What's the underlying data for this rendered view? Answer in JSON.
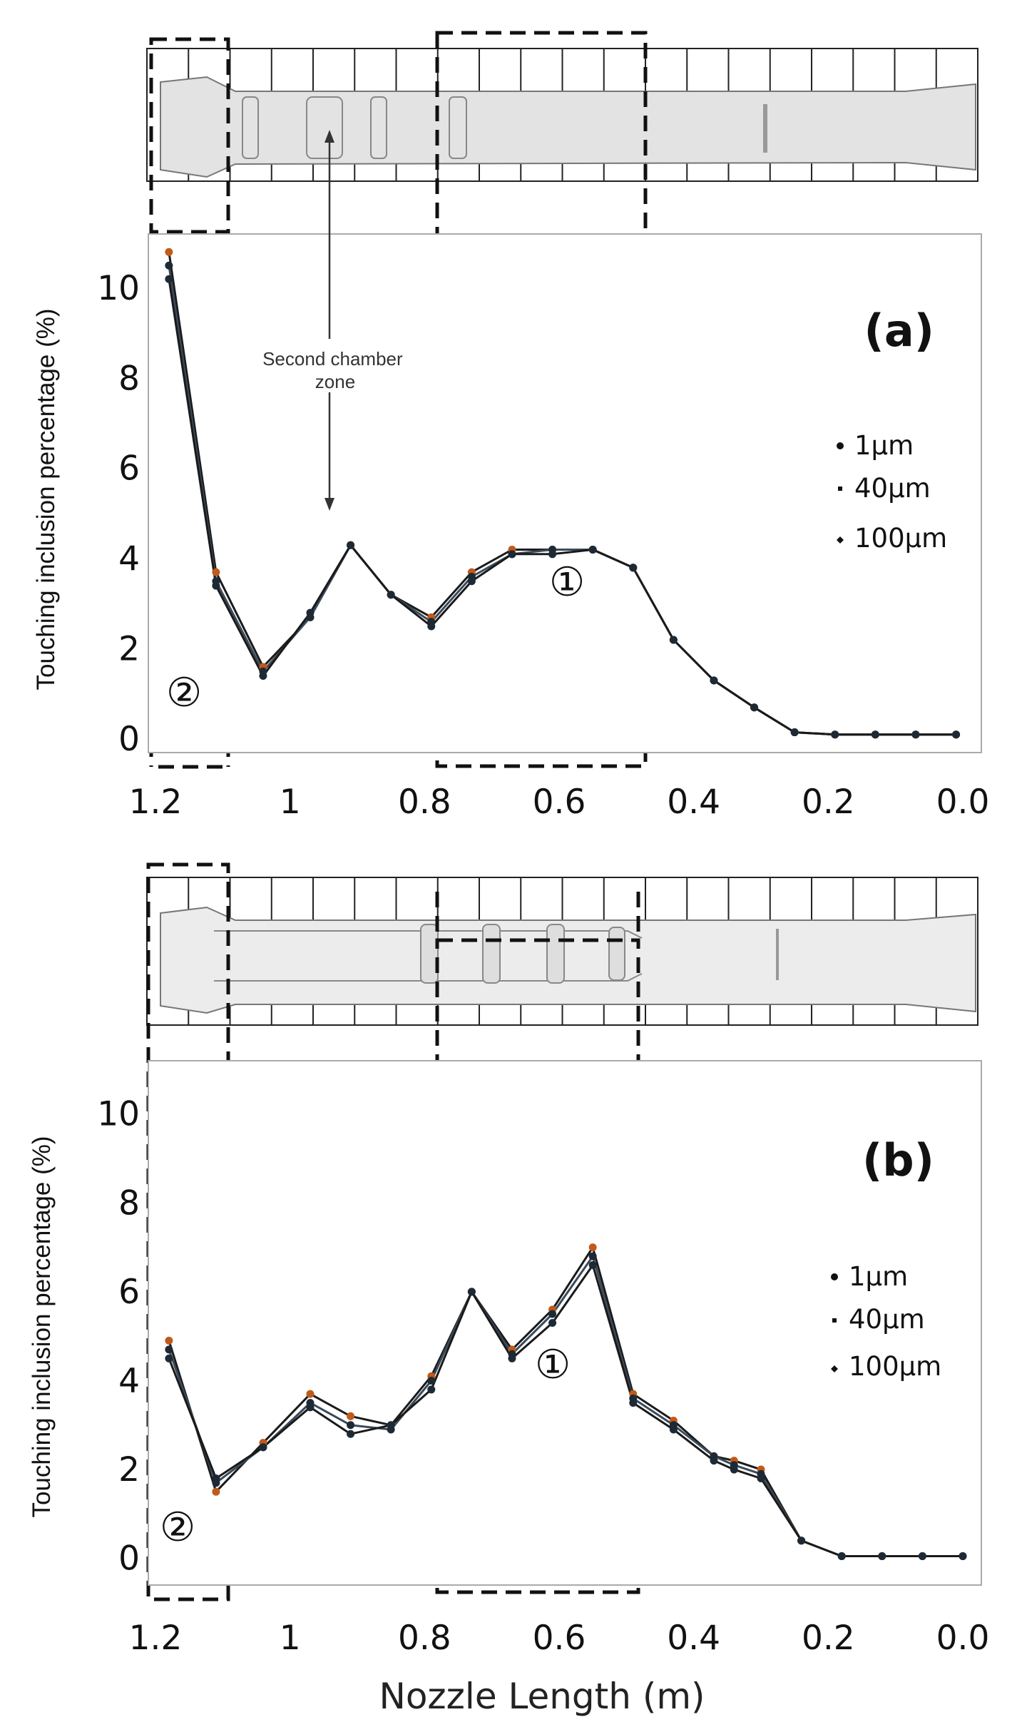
{
  "chart_data": [
    {
      "panel": "(a)",
      "type": "line",
      "ylabel": "Touching inclusion percentage (%)",
      "xlabel": "",
      "x_reversed": true,
      "xlim": [
        1.2,
        0.0
      ],
      "ylim": [
        -0.3,
        11.2
      ],
      "xticks": [
        "1.2",
        "1",
        "0.8",
        "0.6",
        "0.4",
        "0.2",
        "0.0"
      ],
      "yticks": [
        "0",
        "2",
        "4",
        "6",
        "8",
        "10"
      ],
      "legend": [
        "1μm",
        "40μm",
        "100μm"
      ],
      "annotation": "Second chamber zone",
      "zones": [
        "①",
        "②"
      ],
      "series": [
        {
          "name": "1μm",
          "x": [
            1.18,
            1.11,
            1.04,
            0.97,
            0.91,
            0.85,
            0.79,
            0.73,
            0.67,
            0.61,
            0.55,
            0.49,
            0.43,
            0.37,
            0.31,
            0.25,
            0.19,
            0.13,
            0.07,
            0.01
          ],
          "values": [
            10.8,
            3.7,
            1.6,
            2.7,
            4.3,
            3.2,
            2.7,
            3.7,
            4.2,
            4.2,
            4.2,
            3.8,
            2.2,
            1.3,
            0.7,
            0.15,
            0.1,
            0.1,
            0.1,
            0.1
          ]
        },
        {
          "name": "40μm",
          "x": [
            1.18,
            1.11,
            1.04,
            0.97,
            0.91,
            0.85,
            0.79,
            0.73,
            0.67,
            0.61,
            0.55,
            0.49,
            0.43,
            0.37,
            0.31,
            0.25,
            0.19,
            0.13,
            0.07,
            0.01
          ],
          "values": [
            10.5,
            3.5,
            1.5,
            2.7,
            4.3,
            3.2,
            2.6,
            3.6,
            4.1,
            4.2,
            4.2,
            3.8,
            2.2,
            1.3,
            0.7,
            0.15,
            0.1,
            0.1,
            0.1,
            0.1
          ]
        },
        {
          "name": "100μm",
          "x": [
            1.18,
            1.11,
            1.04,
            0.97,
            0.91,
            0.85,
            0.79,
            0.73,
            0.67,
            0.61,
            0.55,
            0.49,
            0.43,
            0.37,
            0.31,
            0.25,
            0.19,
            0.13,
            0.07,
            0.01
          ],
          "values": [
            10.2,
            3.4,
            1.4,
            2.8,
            4.3,
            3.2,
            2.5,
            3.5,
            4.1,
            4.1,
            4.2,
            3.8,
            2.2,
            1.3,
            0.7,
            0.15,
            0.1,
            0.1,
            0.1,
            0.1
          ]
        }
      ]
    },
    {
      "panel": "(b)",
      "type": "line",
      "ylabel": "Touching inclusion percentage (%)",
      "xlabel": "Nozzle Length (m)",
      "x_reversed": true,
      "xlim": [
        1.2,
        0.0
      ],
      "ylim": [
        -0.6,
        11.2
      ],
      "xticks": [
        "1.2",
        "1",
        "0.8",
        "0.6",
        "0.4",
        "0.2",
        "0.0"
      ],
      "yticks": [
        "0",
        "2",
        "4",
        "6",
        "8",
        "10"
      ],
      "legend": [
        "1μm",
        "40μm",
        "100μm"
      ],
      "zones": [
        "①",
        "②"
      ],
      "series": [
        {
          "name": "1μm",
          "x": [
            1.18,
            1.11,
            1.04,
            0.97,
            0.91,
            0.85,
            0.79,
            0.73,
            0.67,
            0.61,
            0.55,
            0.49,
            0.43,
            0.37,
            0.34,
            0.3,
            0.24,
            0.18,
            0.12,
            0.06,
            0.0
          ],
          "values": [
            4.9,
            1.5,
            2.6,
            3.7,
            3.2,
            3.0,
            4.1,
            6.0,
            4.7,
            5.6,
            7.0,
            3.7,
            3.1,
            2.3,
            2.2,
            2.0,
            0.4,
            0.05,
            0.05,
            0.05,
            0.05
          ]
        },
        {
          "name": "40μm",
          "x": [
            1.18,
            1.11,
            1.04,
            0.97,
            0.91,
            0.85,
            0.79,
            0.73,
            0.67,
            0.61,
            0.55,
            0.49,
            0.43,
            0.37,
            0.34,
            0.3,
            0.24,
            0.18,
            0.12,
            0.06,
            0.0
          ],
          "values": [
            4.7,
            1.7,
            2.5,
            3.5,
            3.0,
            2.9,
            4.0,
            6.0,
            4.6,
            5.5,
            6.8,
            3.6,
            3.0,
            2.3,
            2.1,
            1.9,
            0.4,
            0.05,
            0.05,
            0.05,
            0.05
          ]
        },
        {
          "name": "100μm",
          "x": [
            1.18,
            1.11,
            1.04,
            0.97,
            0.91,
            0.85,
            0.79,
            0.73,
            0.67,
            0.61,
            0.55,
            0.49,
            0.43,
            0.37,
            0.34,
            0.3,
            0.24,
            0.18,
            0.12,
            0.06,
            0.0
          ],
          "values": [
            4.5,
            1.8,
            2.5,
            3.4,
            2.8,
            3.0,
            3.8,
            6.0,
            4.5,
            5.3,
            6.6,
            3.5,
            2.9,
            2.2,
            2.0,
            1.8,
            0.4,
            0.05,
            0.05,
            0.05,
            0.05
          ]
        }
      ]
    }
  ],
  "colors": {
    "line": "#1a1a1a",
    "marker": "#c05a1a",
    "nozzle": "#d9d9d9"
  }
}
